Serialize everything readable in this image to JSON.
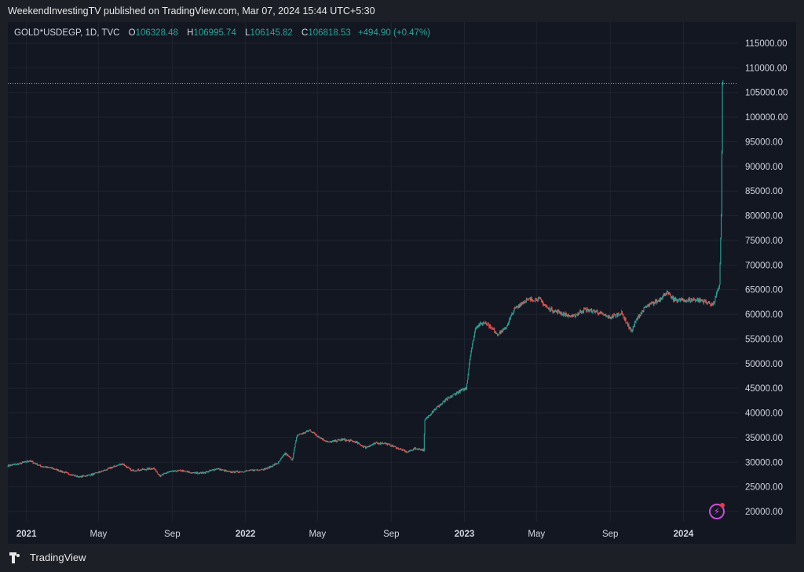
{
  "header": {
    "published_text": "WeekendInvestingTV published on TradingView.com, Mar 07, 2024 15:44 UTC+5:30"
  },
  "legend": {
    "symbol": "GOLD*USDEGP, 1D, TVC",
    "open_label": "O",
    "open_value": "106328.48",
    "high_label": "H",
    "high_value": "106995.74",
    "low_label": "L",
    "low_value": "106145.82",
    "close_label": "C",
    "close_value": "106818.53",
    "change": "+494.90 (+0.47%)"
  },
  "footer": {
    "brand": "TradingView"
  },
  "icons": {
    "logo": "tradingview-logo-icon",
    "lightning": "lightning-icon"
  },
  "colors": {
    "up": "#26a69a",
    "down": "#ef5350",
    "background": "#131722",
    "grid": "#1f2430",
    "price_line": "#b2b5be"
  },
  "chart_data": {
    "type": "candlestick",
    "title": "",
    "xlabel": "",
    "ylabel": "",
    "ylim": [
      20000,
      115000
    ],
    "grid": true,
    "y_ticks": [
      "115000.00",
      "110000.00",
      "105000.00",
      "100000.00",
      "95000.00",
      "90000.00",
      "85000.00",
      "80000.00",
      "75000.00",
      "70000.00",
      "65000.00",
      "60000.00",
      "55000.00",
      "50000.00",
      "45000.00",
      "40000.00",
      "35000.00",
      "30000.00",
      "25000.00",
      "20000.00"
    ],
    "y_tick_values": [
      115000,
      110000,
      105000,
      100000,
      95000,
      90000,
      85000,
      80000,
      75000,
      70000,
      65000,
      60000,
      55000,
      50000,
      45000,
      40000,
      35000,
      30000,
      25000,
      20000
    ],
    "x_ticks": [
      {
        "label": "2021",
        "date": "2021-01-01",
        "bold": true
      },
      {
        "label": "May",
        "date": "2021-05-01",
        "bold": false
      },
      {
        "label": "Sep",
        "date": "2021-09-01",
        "bold": false
      },
      {
        "label": "2022",
        "date": "2022-01-01",
        "bold": true
      },
      {
        "label": "May",
        "date": "2022-05-01",
        "bold": false
      },
      {
        "label": "Sep",
        "date": "2022-09-01",
        "bold": false
      },
      {
        "label": "2023",
        "date": "2023-01-01",
        "bold": true
      },
      {
        "label": "May",
        "date": "2023-05-01",
        "bold": false
      },
      {
        "label": "Sep",
        "date": "2023-09-01",
        "bold": false
      },
      {
        "label": "2024",
        "date": "2024-01-01",
        "bold": true
      }
    ],
    "x_range": [
      "2020-12-01",
      "2024-04-01"
    ],
    "last_close": 106818.53,
    "series": [
      {
        "path": [
          [
            "2020-12-01",
            29300
          ],
          [
            "2020-12-20",
            29700
          ],
          [
            "2021-01-06",
            30300
          ],
          [
            "2021-01-25",
            29200
          ],
          [
            "2021-02-15",
            28700
          ],
          [
            "2021-03-08",
            27800
          ],
          [
            "2021-03-30",
            27000
          ],
          [
            "2021-04-20",
            27500
          ],
          [
            "2021-05-10",
            28300
          ],
          [
            "2021-05-31",
            29300
          ],
          [
            "2021-06-10",
            29700
          ],
          [
            "2021-06-25",
            28300
          ],
          [
            "2021-07-15",
            28500
          ],
          [
            "2021-08-01",
            28800
          ],
          [
            "2021-08-12",
            27200
          ],
          [
            "2021-08-25",
            28000
          ],
          [
            "2021-09-15",
            28300
          ],
          [
            "2021-10-05",
            27800
          ],
          [
            "2021-10-25",
            27900
          ],
          [
            "2021-11-15",
            28700
          ],
          [
            "2021-12-05",
            28000
          ],
          [
            "2021-12-25",
            28100
          ],
          [
            "2022-01-15",
            28400
          ],
          [
            "2022-02-05",
            28700
          ],
          [
            "2022-02-25",
            29900
          ],
          [
            "2022-03-08",
            31800
          ],
          [
            "2022-03-20",
            30500
          ],
          [
            "2022-03-28",
            35500
          ],
          [
            "2022-04-10",
            36000
          ],
          [
            "2022-04-18",
            36500
          ],
          [
            "2022-05-05",
            35000
          ],
          [
            "2022-05-20",
            34000
          ],
          [
            "2022-06-10",
            34600
          ],
          [
            "2022-07-01",
            34200
          ],
          [
            "2022-07-20",
            33000
          ],
          [
            "2022-08-05",
            33800
          ],
          [
            "2022-08-20",
            33900
          ],
          [
            "2022-09-05",
            33200
          ],
          [
            "2022-09-28",
            32000
          ],
          [
            "2022-10-10",
            32800
          ],
          [
            "2022-10-25",
            32500
          ],
          [
            "2022-10-27",
            38500
          ],
          [
            "2022-11-10",
            40500
          ],
          [
            "2022-11-30",
            42500
          ],
          [
            "2022-12-20",
            44200
          ],
          [
            "2023-01-04",
            45000
          ],
          [
            "2023-01-11",
            52000
          ],
          [
            "2023-01-20",
            57500
          ],
          [
            "2023-02-05",
            58500
          ],
          [
            "2023-02-25",
            56000
          ],
          [
            "2023-03-10",
            57000
          ],
          [
            "2023-03-25",
            61000
          ],
          [
            "2023-04-12",
            62800
          ],
          [
            "2023-05-05",
            63200
          ],
          [
            "2023-05-20",
            61200
          ],
          [
            "2023-06-05",
            60500
          ],
          [
            "2023-06-30",
            59500
          ],
          [
            "2023-07-20",
            61000
          ],
          [
            "2023-08-10",
            60500
          ],
          [
            "2023-08-30",
            59300
          ],
          [
            "2023-09-20",
            60300
          ],
          [
            "2023-10-06",
            56500
          ],
          [
            "2023-10-15",
            59000
          ],
          [
            "2023-10-30",
            61500
          ],
          [
            "2023-11-20",
            62800
          ],
          [
            "2023-12-04",
            64500
          ],
          [
            "2023-12-15",
            63000
          ],
          [
            "2024-01-01",
            62800
          ],
          [
            "2024-01-20",
            63000
          ],
          [
            "2024-02-05",
            62600
          ],
          [
            "2024-02-20",
            62000
          ],
          [
            "2024-03-01",
            66000
          ],
          [
            "2024-03-04",
            80000
          ],
          [
            "2024-03-06",
            106300
          ],
          [
            "2024-03-07",
            106818.53
          ]
        ]
      }
    ]
  }
}
